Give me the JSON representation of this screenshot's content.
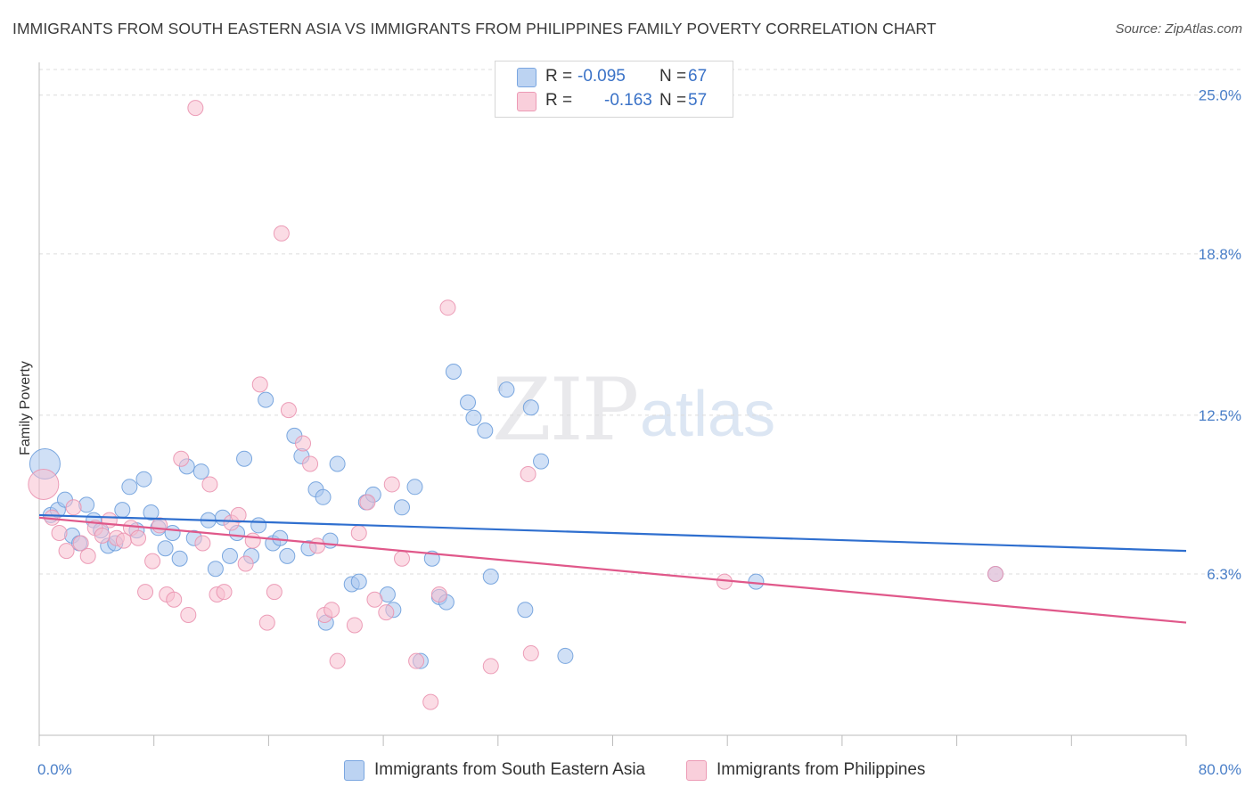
{
  "header": {
    "title": "IMMIGRANTS FROM SOUTH EASTERN ASIA VS IMMIGRANTS FROM PHILIPPINES FAMILY POVERTY CORRELATION CHART",
    "source": "Source: ZipAtlas.com"
  },
  "watermark": {
    "part1": "ZIP",
    "part2": "atlas"
  },
  "legend": {
    "series1": {
      "r_label": "R =",
      "r_value": "-0.095",
      "n_label": "N =",
      "n_value": "67"
    },
    "series2": {
      "r_label": "R =",
      "r_value": "-0.163",
      "n_label": "N =",
      "n_value": "57"
    }
  },
  "colors": {
    "blue_fill": "#a9c6ef",
    "blue_stroke": "#6e9edc",
    "blue_line": "#2f6fcf",
    "pink_fill": "#f7bfd0",
    "pink_stroke": "#ea93b0",
    "pink_line": "#e0588a",
    "tick_text": "#4a7fc8",
    "grid": "#dcdcdc"
  },
  "chart_data": {
    "type": "scatter",
    "title": "IMMIGRANTS FROM SOUTH EASTERN ASIA VS IMMIGRANTS FROM PHILIPPINES FAMILY POVERTY CORRELATION CHART",
    "xlabel": "",
    "ylabel": "Family Poverty",
    "xlim": [
      0,
      80
    ],
    "ylim": [
      0,
      26
    ],
    "x_tick_labels": [
      "0.0%",
      "80.0%"
    ],
    "y_ticks": [
      6.3,
      12.5,
      18.8,
      25.0
    ],
    "y_tick_labels": [
      "6.3%",
      "12.5%",
      "18.8%",
      "25.0%"
    ],
    "grid": true,
    "legend_position": "top-center",
    "series": [
      {
        "name": "Immigrants from South Eastern Asia",
        "color": "#a9c6ef",
        "trend": {
          "x": [
            0,
            80
          ],
          "y": [
            8.6,
            7.2
          ]
        },
        "points": [
          {
            "x": 0.4,
            "y": 10.6,
            "big": true
          },
          {
            "x": 0.8,
            "y": 8.6
          },
          {
            "x": 1.3,
            "y": 8.8
          },
          {
            "x": 1.8,
            "y": 9.2
          },
          {
            "x": 2.3,
            "y": 7.8
          },
          {
            "x": 2.8,
            "y": 7.5
          },
          {
            "x": 3.3,
            "y": 9.0
          },
          {
            "x": 3.8,
            "y": 8.4
          },
          {
            "x": 4.3,
            "y": 8.0
          },
          {
            "x": 4.8,
            "y": 7.4
          },
          {
            "x": 5.3,
            "y": 7.5
          },
          {
            "x": 5.8,
            "y": 8.8
          },
          {
            "x": 6.3,
            "y": 9.7
          },
          {
            "x": 6.8,
            "y": 8.0
          },
          {
            "x": 7.3,
            "y": 10.0
          },
          {
            "x": 7.8,
            "y": 8.7
          },
          {
            "x": 8.3,
            "y": 8.1
          },
          {
            "x": 8.8,
            "y": 7.3
          },
          {
            "x": 9.3,
            "y": 7.9
          },
          {
            "x": 9.8,
            "y": 6.9
          },
          {
            "x": 10.3,
            "y": 10.5
          },
          {
            "x": 10.8,
            "y": 7.7
          },
          {
            "x": 11.3,
            "y": 10.3
          },
          {
            "x": 11.8,
            "y": 8.4
          },
          {
            "x": 12.3,
            "y": 6.5
          },
          {
            "x": 12.8,
            "y": 8.5
          },
          {
            "x": 13.3,
            "y": 7.0
          },
          {
            "x": 13.8,
            "y": 7.9
          },
          {
            "x": 14.3,
            "y": 10.8
          },
          {
            "x": 14.8,
            "y": 7.0
          },
          {
            "x": 15.3,
            "y": 8.2
          },
          {
            "x": 15.8,
            "y": 13.1
          },
          {
            "x": 16.3,
            "y": 7.5
          },
          {
            "x": 16.8,
            "y": 7.7
          },
          {
            "x": 17.3,
            "y": 7.0
          },
          {
            "x": 17.8,
            "y": 11.7
          },
          {
            "x": 18.3,
            "y": 10.9
          },
          {
            "x": 18.8,
            "y": 7.3
          },
          {
            "x": 19.3,
            "y": 9.6
          },
          {
            "x": 19.8,
            "y": 9.3
          },
          {
            "x": 20.8,
            "y": 10.6
          },
          {
            "x": 20.3,
            "y": 7.6
          },
          {
            "x": 21.8,
            "y": 5.9
          },
          {
            "x": 22.3,
            "y": 6.0
          },
          {
            "x": 22.8,
            "y": 9.1
          },
          {
            "x": 23.3,
            "y": 9.4
          },
          {
            "x": 24.3,
            "y": 5.5
          },
          {
            "x": 24.7,
            "y": 4.9
          },
          {
            "x": 25.3,
            "y": 8.9
          },
          {
            "x": 26.2,
            "y": 9.7
          },
          {
            "x": 27.4,
            "y": 6.9
          },
          {
            "x": 27.9,
            "y": 5.4
          },
          {
            "x": 28.4,
            "y": 5.2
          },
          {
            "x": 28.9,
            "y": 14.2
          },
          {
            "x": 29.9,
            "y": 13.0
          },
          {
            "x": 30.3,
            "y": 12.4
          },
          {
            "x": 31.1,
            "y": 11.9
          },
          {
            "x": 31.5,
            "y": 6.2
          },
          {
            "x": 32.6,
            "y": 13.5
          },
          {
            "x": 33.9,
            "y": 4.9
          },
          {
            "x": 34.3,
            "y": 12.8
          },
          {
            "x": 35.0,
            "y": 10.7
          },
          {
            "x": 36.7,
            "y": 3.1
          },
          {
            "x": 20.0,
            "y": 4.4
          },
          {
            "x": 26.6,
            "y": 2.9
          },
          {
            "x": 50.0,
            "y": 6.0
          },
          {
            "x": 66.7,
            "y": 6.3
          }
        ]
      },
      {
        "name": "Immigrants from Philippines",
        "color": "#f7bfd0",
        "trend": {
          "x": [
            0,
            80
          ],
          "y": [
            8.5,
            4.4
          ]
        },
        "points": [
          {
            "x": 0.3,
            "y": 9.8,
            "big": true
          },
          {
            "x": 0.9,
            "y": 8.5
          },
          {
            "x": 1.4,
            "y": 7.9
          },
          {
            "x": 1.9,
            "y": 7.2
          },
          {
            "x": 2.4,
            "y": 8.9
          },
          {
            "x": 2.9,
            "y": 7.5
          },
          {
            "x": 3.4,
            "y": 7.0
          },
          {
            "x": 3.9,
            "y": 8.1
          },
          {
            "x": 4.4,
            "y": 7.8
          },
          {
            "x": 4.9,
            "y": 8.4
          },
          {
            "x": 5.4,
            "y": 7.7
          },
          {
            "x": 5.9,
            "y": 7.6
          },
          {
            "x": 6.4,
            "y": 8.1
          },
          {
            "x": 6.9,
            "y": 7.7
          },
          {
            "x": 7.4,
            "y": 5.6
          },
          {
            "x": 7.9,
            "y": 6.8
          },
          {
            "x": 8.4,
            "y": 8.2
          },
          {
            "x": 8.9,
            "y": 5.5
          },
          {
            "x": 9.4,
            "y": 5.3
          },
          {
            "x": 9.9,
            "y": 10.8
          },
          {
            "x": 10.4,
            "y": 4.7
          },
          {
            "x": 10.9,
            "y": 24.5
          },
          {
            "x": 11.4,
            "y": 7.5
          },
          {
            "x": 11.9,
            "y": 9.8
          },
          {
            "x": 12.4,
            "y": 5.5
          },
          {
            "x": 12.9,
            "y": 5.6
          },
          {
            "x": 13.4,
            "y": 8.3
          },
          {
            "x": 13.9,
            "y": 8.6
          },
          {
            "x": 14.4,
            "y": 6.7
          },
          {
            "x": 14.9,
            "y": 7.6
          },
          {
            "x": 15.4,
            "y": 13.7
          },
          {
            "x": 15.9,
            "y": 4.4
          },
          {
            "x": 16.4,
            "y": 5.6
          },
          {
            "x": 16.9,
            "y": 19.6
          },
          {
            "x": 17.4,
            "y": 12.7
          },
          {
            "x": 18.4,
            "y": 11.4
          },
          {
            "x": 18.9,
            "y": 10.6
          },
          {
            "x": 19.4,
            "y": 7.4
          },
          {
            "x": 19.9,
            "y": 4.7
          },
          {
            "x": 20.4,
            "y": 4.9
          },
          {
            "x": 20.8,
            "y": 2.9
          },
          {
            "x": 22.0,
            "y": 4.3
          },
          {
            "x": 22.3,
            "y": 7.9
          },
          {
            "x": 22.9,
            "y": 9.1
          },
          {
            "x": 23.4,
            "y": 5.3
          },
          {
            "x": 24.2,
            "y": 4.8
          },
          {
            "x": 24.6,
            "y": 9.8
          },
          {
            "x": 25.3,
            "y": 6.9
          },
          {
            "x": 26.3,
            "y": 2.9
          },
          {
            "x": 27.3,
            "y": 1.3
          },
          {
            "x": 27.9,
            "y": 5.5
          },
          {
            "x": 28.5,
            "y": 16.7
          },
          {
            "x": 31.5,
            "y": 2.7
          },
          {
            "x": 34.1,
            "y": 10.2
          },
          {
            "x": 34.3,
            "y": 3.2
          },
          {
            "x": 47.8,
            "y": 6.0
          },
          {
            "x": 66.7,
            "y": 6.3
          }
        ]
      }
    ]
  },
  "bottom_legend": {
    "series1_label": "Immigrants from South Eastern Asia",
    "series2_label": "Immigrants from Philippines"
  }
}
